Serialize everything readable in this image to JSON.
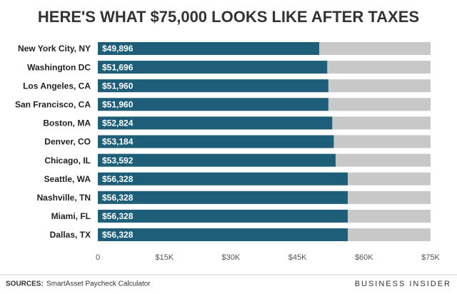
{
  "chart_data": {
    "type": "bar",
    "orientation": "horizontal",
    "title": "HERE'S WHAT $75,000 LOOKS LIKE AFTER TAXES",
    "categories": [
      "New York City, NY",
      "Washington DC",
      "Los Angeles, CA",
      "San Francisco, CA",
      "Boston, MA",
      "Denver, CO",
      "Chicago, IL",
      "Seattle, WA",
      "Nashville, TN",
      "Miami, FL",
      "Dallas, TX"
    ],
    "values": [
      49896,
      51696,
      51960,
      51960,
      52824,
      53184,
      53592,
      56328,
      56328,
      56328,
      56328
    ],
    "value_labels": [
      "$49,896",
      "$51,696",
      "$51,960",
      "$51,960",
      "$52,824",
      "$53,184",
      "$53,592",
      "$56,328",
      "$56,328",
      "$56,328",
      "$56,328"
    ],
    "color": "#1e5e79",
    "track_color": "#c8c8c8",
    "xlim": [
      0,
      75000
    ],
    "xticks": [
      0,
      {
        "value": 15000,
        "label": "$15K"
      },
      {
        "value": 30000,
        "label": "$30K"
      },
      {
        "value": 45000,
        "label": "$45K"
      },
      {
        "value": 60000,
        "label": "$60K"
      },
      {
        "value": 75000,
        "label": "$75K"
      }
    ],
    "source_label": "SOURCES:",
    "source": "SmartAsset Paycheck Calculator",
    "brand": "BUSINESS INSIDER"
  }
}
